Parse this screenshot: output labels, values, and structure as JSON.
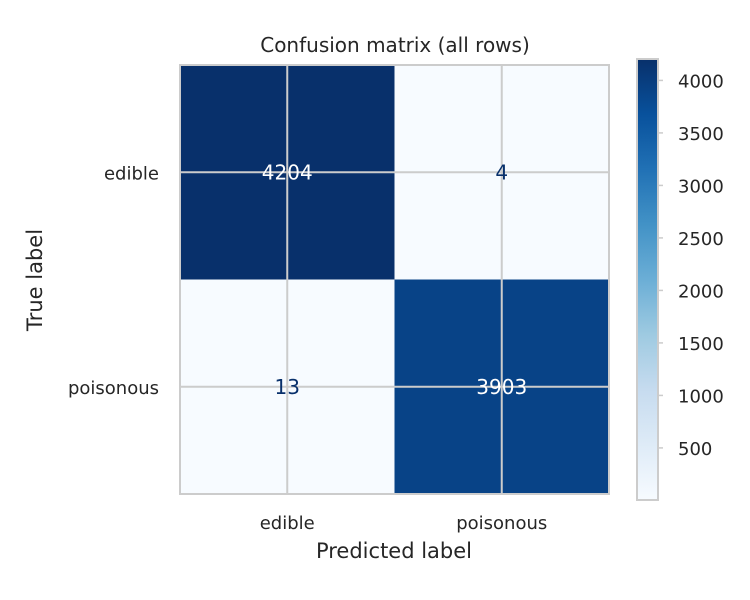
{
  "chart_data": {
    "type": "heatmap",
    "title": "Confusion matrix (all rows)",
    "xlabel": "Predicted label",
    "ylabel": "True label",
    "x_categories": [
      "edible",
      "poisonous"
    ],
    "y_categories": [
      "edible",
      "poisonous"
    ],
    "values": [
      [
        4204,
        4
      ],
      [
        13,
        3903
      ]
    ],
    "colormap": "Blues",
    "colorbar": {
      "range": [
        4,
        4204
      ],
      "ticks": [
        500,
        1000,
        1500,
        2000,
        2500,
        3000,
        3500,
        4000
      ]
    },
    "grid": true
  }
}
